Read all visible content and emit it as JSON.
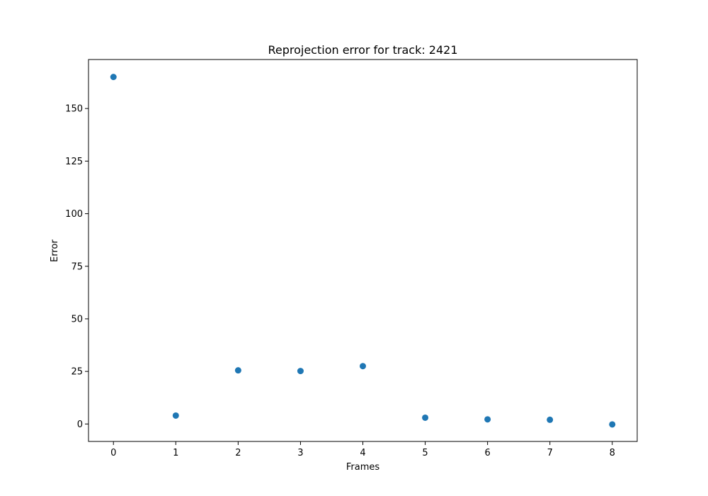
{
  "chart_data": {
    "type": "scatter",
    "title": "Reprojection error for track: 2421",
    "xlabel": "Frames",
    "ylabel": "Error",
    "x": [
      0,
      1,
      2,
      3,
      4,
      5,
      6,
      7,
      8
    ],
    "y": [
      165,
      4,
      25.5,
      25.2,
      27.5,
      3,
      2.2,
      2,
      -0.2
    ],
    "xlim": [
      -0.4,
      8.4
    ],
    "ylim": [
      -8.3,
      173.3
    ],
    "xticks": [
      0,
      1,
      2,
      3,
      4,
      5,
      6,
      7,
      8
    ],
    "xtick_labels": [
      "0",
      "1",
      "2",
      "3",
      "4",
      "5",
      "6",
      "7",
      "8"
    ],
    "yticks": [
      0,
      25,
      50,
      75,
      100,
      125,
      150
    ],
    "ytick_labels": [
      "0",
      "25",
      "50",
      "75",
      "100",
      "125",
      "150"
    ],
    "grid": false,
    "marker_color": "#1f77b4"
  }
}
